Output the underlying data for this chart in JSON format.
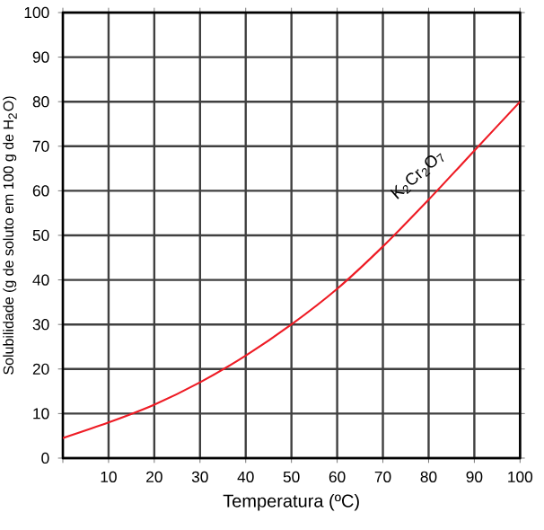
{
  "chart_data": {
    "type": "line",
    "xlabel": "Temperatura (ºC)",
    "ylabel": "Solubilidade (g de soluto em 100 g de H$_{2}$O)",
    "x": [
      0,
      10,
      20,
      30,
      40,
      50,
      60,
      70,
      80,
      90,
      100
    ],
    "series": [
      {
        "color": "#ee1c25",
        "values": [
          4.5,
          8,
          12,
          17,
          23,
          30,
          38,
          47.5,
          58,
          69,
          80
        ]
      }
    ],
    "annotations": [
      {
        "text": "K$_{2}$Cr$_{2}$O$_{7}$",
        "x": 80,
        "y": 61
      }
    ],
    "xlim": [
      0,
      100
    ],
    "ylim": [
      0,
      100
    ],
    "xticks": [
      {
        "value": 0,
        "label": null
      },
      10,
      20,
      30,
      40,
      50,
      60,
      70,
      80,
      90,
      100
    ],
    "yticks": [
      0,
      10,
      20,
      30,
      40,
      50,
      60,
      70,
      80,
      90,
      100
    ],
    "grid": true,
    "marker": "none",
    "line_style": "solid"
  }
}
